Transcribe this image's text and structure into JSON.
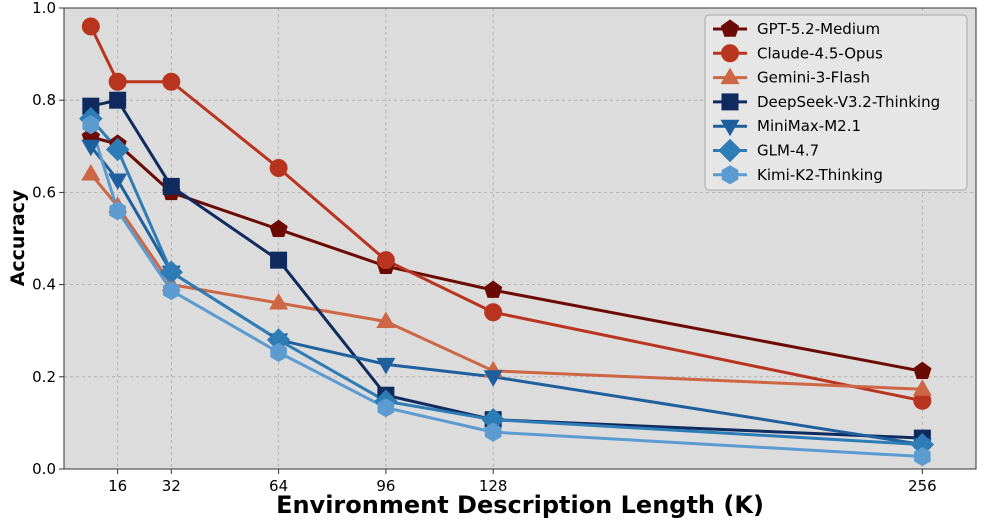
{
  "chart_data": {
    "type": "line",
    "xlabel": "Environment Description Length (K)",
    "ylabel": "Accuracy",
    "xlim": [
      0,
      272
    ],
    "ylim": [
      0,
      1.0
    ],
    "xticks": [
      16,
      32,
      64,
      96,
      128,
      256
    ],
    "yticks": [
      0.0,
      0.2,
      0.4,
      0.6,
      0.8,
      1.0
    ],
    "xtick_labels": [
      "16",
      "32",
      "64",
      "96",
      "128",
      "256"
    ],
    "ytick_labels": [
      "0.0",
      "0.2",
      "0.4",
      "0.6",
      "0.8",
      "1.0"
    ],
    "grid": true,
    "legend_position": "top-right",
    "series": [
      {
        "name": "GPT-5.2-Medium",
        "color": "#6b0a02",
        "marker": "pentagon",
        "x": [
          8,
          16,
          32,
          64,
          96,
          128,
          256
        ],
        "y": [
          0.72,
          0.705,
          0.6,
          0.52,
          0.44,
          0.388,
          0.212
        ]
      },
      {
        "name": "Claude-4.5-Opus",
        "color": "#b8341f",
        "marker": "circle",
        "x": [
          8,
          16,
          32,
          64,
          96,
          128,
          256
        ],
        "y": [
          0.96,
          0.84,
          0.84,
          0.653,
          0.453,
          0.34,
          0.148
        ]
      },
      {
        "name": "Gemini-3-Flash",
        "color": "#cc6644",
        "marker": "triangle-up",
        "x": [
          8,
          16,
          32,
          64,
          96,
          128,
          256
        ],
        "y": [
          0.64,
          0.57,
          0.4,
          0.36,
          0.32,
          0.213,
          0.173
        ]
      },
      {
        "name": "DeepSeek-V3.2-Thinking",
        "color": "#0f2a5e",
        "marker": "square",
        "x": [
          8,
          16,
          32,
          64,
          96,
          128,
          256
        ],
        "y": [
          0.787,
          0.8,
          0.613,
          0.453,
          0.16,
          0.107,
          0.067
        ]
      },
      {
        "name": "MiniMax-M2.1",
        "color": "#1e5f9e",
        "marker": "triangle-down",
        "x": [
          8,
          16,
          32,
          64,
          96,
          128,
          256
        ],
        "y": [
          0.7,
          0.627,
          0.427,
          0.28,
          0.227,
          0.2,
          0.053
        ]
      },
      {
        "name": "GLM-4.7",
        "color": "#2e7cb6",
        "marker": "diamond",
        "x": [
          8,
          16,
          32,
          64,
          96,
          128,
          256
        ],
        "y": [
          0.76,
          0.693,
          0.427,
          0.28,
          0.147,
          0.107,
          0.053
        ]
      },
      {
        "name": "Kimi-K2-Thinking",
        "color": "#5b9bd0",
        "marker": "hexagon",
        "x": [
          8,
          16,
          32,
          64,
          96,
          128,
          256
        ],
        "y": [
          0.747,
          0.56,
          0.387,
          0.253,
          0.133,
          0.08,
          0.027
        ]
      }
    ]
  }
}
